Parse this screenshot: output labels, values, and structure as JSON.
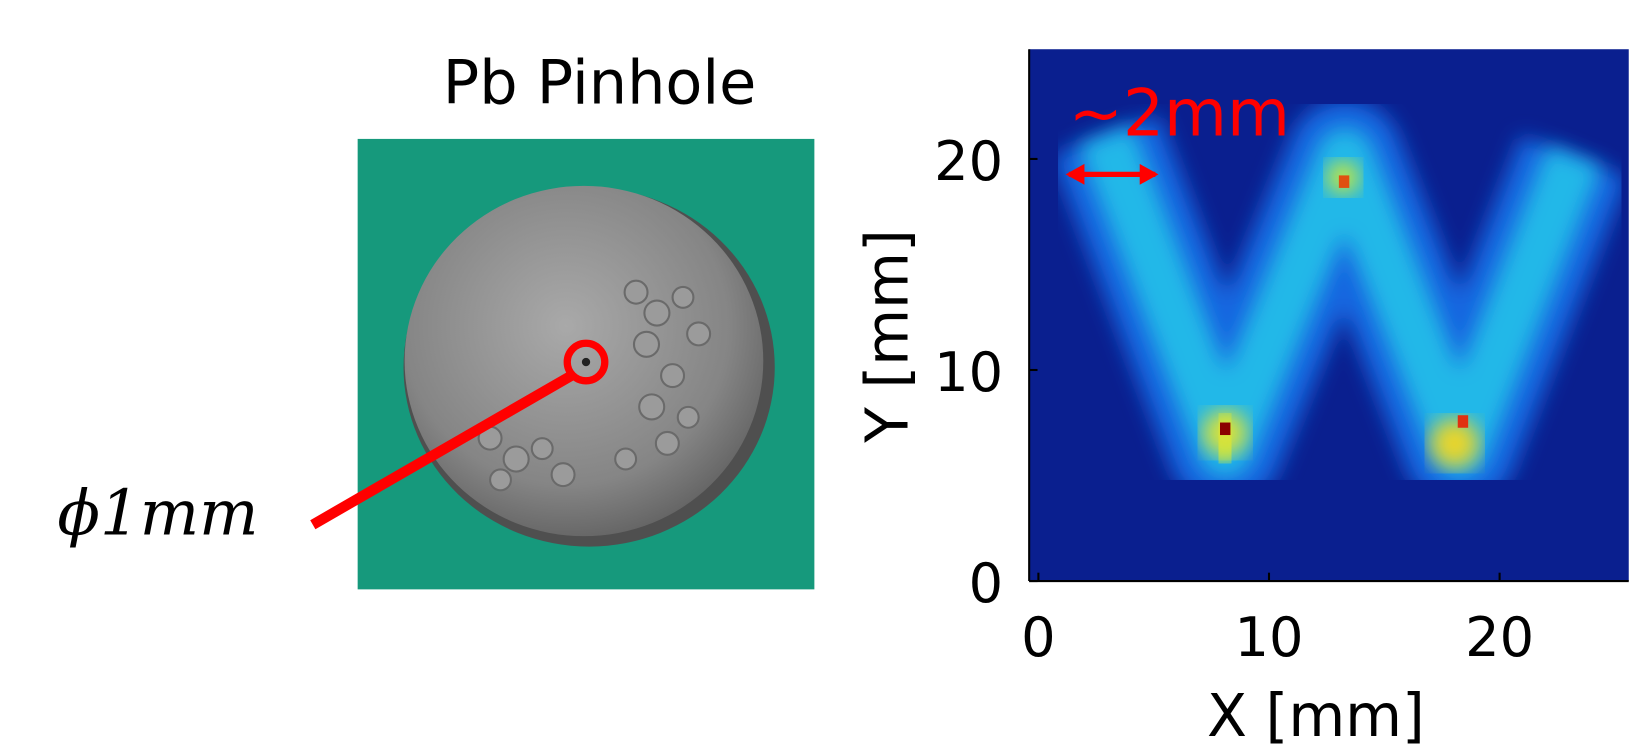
{
  "photo": {
    "title": "Pb Pinhole",
    "annotation": "ϕ1mm"
  },
  "heatmap": {
    "annotation": "~2mm",
    "xlabel": "X [mm]",
    "ylabel": "Y [mm]",
    "xlim": [
      -0.4,
      25.6
    ],
    "ylim": [
      0,
      25.2
    ],
    "xticks": [
      0,
      10,
      20
    ],
    "yticks": [
      0,
      10,
      20
    ]
  }
}
